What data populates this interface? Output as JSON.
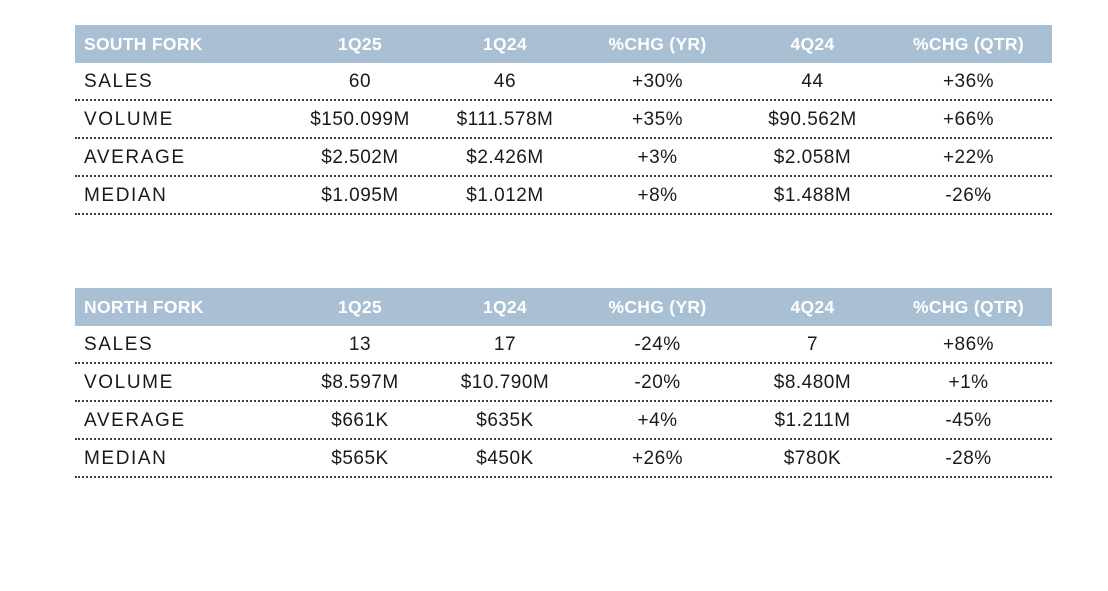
{
  "columns": [
    "1Q25",
    "1Q24",
    "%CHG (YR)",
    "4Q24",
    "%CHG (QTR)"
  ],
  "tables": [
    {
      "title": "SOUTH FORK",
      "rows": [
        {
          "label": "SALES",
          "values": [
            "60",
            "46",
            "+30%",
            "44",
            "+36%"
          ]
        },
        {
          "label": "VOLUME",
          "values": [
            "$150.099M",
            "$111.578M",
            "+35%",
            "$90.562M",
            "+66%"
          ]
        },
        {
          "label": "AVERAGE",
          "values": [
            "$2.502M",
            "$2.426M",
            "+3%",
            "$2.058M",
            "+22%"
          ]
        },
        {
          "label": "MEDIAN",
          "values": [
            "$1.095M",
            "$1.012M",
            "+8%",
            "$1.488M",
            "-26%"
          ]
        }
      ]
    },
    {
      "title": "NORTH FORK",
      "rows": [
        {
          "label": "SALES",
          "values": [
            "13",
            "17",
            "-24%",
            "7",
            "+86%"
          ]
        },
        {
          "label": "VOLUME",
          "values": [
            "$8.597M",
            "$10.790M",
            "-20%",
            "$8.480M",
            "+1%"
          ]
        },
        {
          "label": "AVERAGE",
          "values": [
            "$661K",
            "$635K",
            "+4%",
            "$1.211M",
            "-45%"
          ]
        },
        {
          "label": "MEDIAN",
          "values": [
            "$565K",
            "$450K",
            "+26%",
            "$780K",
            "-28%"
          ]
        }
      ]
    }
  ],
  "colors": {
    "header_background": "#a9bfd3",
    "header_text": "#ffffff",
    "body_text": "#1a1a1a",
    "row_divider": "#3a3a3a"
  }
}
